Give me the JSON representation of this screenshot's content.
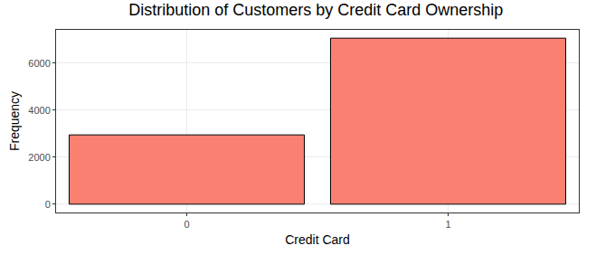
{
  "chart_data": {
    "type": "bar",
    "title": "Distribution of Customers by Credit Card Ownership",
    "x_label": "Credit Card",
    "y_label": "Frequency",
    "categories": [
      "0",
      "1"
    ],
    "values": [
      2945,
      7055
    ],
    "color": "#fa8072",
    "ylim": [
      -353,
      7408
    ],
    "yticks": [
      0,
      2000,
      4000,
      6000
    ],
    "grid": true
  }
}
